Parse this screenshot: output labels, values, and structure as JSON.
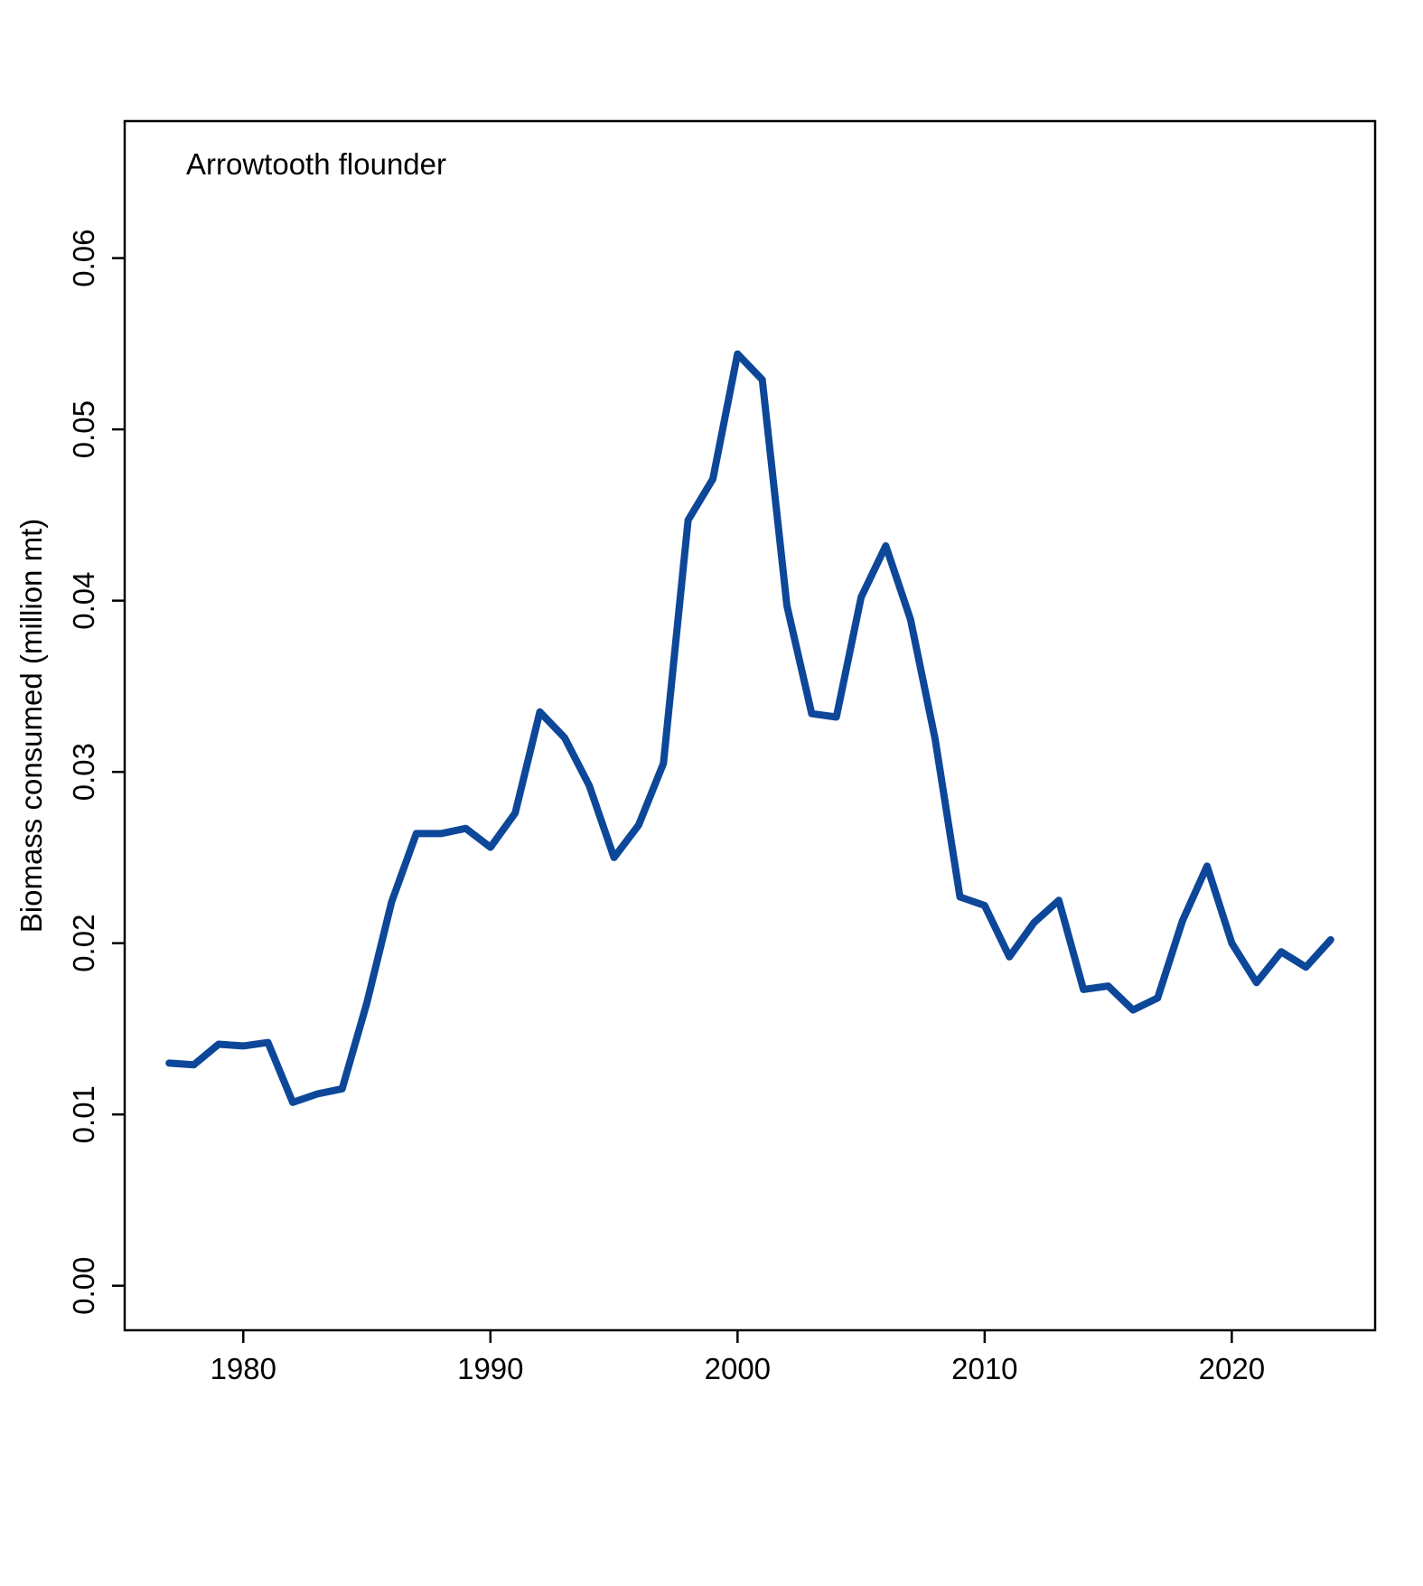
{
  "chart_data": {
    "type": "line",
    "title": "",
    "panel_label": "Arrowtooth flounder",
    "xlabel": "",
    "ylabel": "Biomass consumed (million mt)",
    "xlim": [
      1975.2,
      2025.8
    ],
    "ylim": [
      -0.0026,
      0.068
    ],
    "xticks": [
      1980,
      1990,
      2000,
      2010,
      2020
    ],
    "xtick_labels": [
      "1980",
      "1990",
      "2000",
      "2010",
      "2020"
    ],
    "yticks": [
      0.0,
      0.01,
      0.02,
      0.03,
      0.04,
      0.05,
      0.06
    ],
    "ytick_labels": [
      "0.00",
      "0.01",
      "0.02",
      "0.03",
      "0.04",
      "0.05",
      "0.06"
    ],
    "grid": false,
    "line_color": "#0d4799",
    "x": [
      1977,
      1978,
      1979,
      1980,
      1981,
      1982,
      1983,
      1984,
      1985,
      1986,
      1987,
      1988,
      1989,
      1990,
      1991,
      1992,
      1993,
      1994,
      1995,
      1996,
      1997,
      1998,
      1999,
      2000,
      2001,
      2002,
      2003,
      2004,
      2005,
      2006,
      2007,
      2008,
      2009,
      2010,
      2011,
      2012,
      2013,
      2014,
      2015,
      2016,
      2017,
      2018,
      2019,
      2020,
      2021,
      2022,
      2023,
      2024
    ],
    "y": [
      0.013,
      0.0129,
      0.0141,
      0.014,
      0.0142,
      0.0107,
      0.0112,
      0.0115,
      0.0165,
      0.0224,
      0.0264,
      0.0264,
      0.0267,
      0.0256,
      0.0276,
      0.0335,
      0.032,
      0.0292,
      0.025,
      0.0269,
      0.0305,
      0.0447,
      0.0471,
      0.0544,
      0.0529,
      0.0397,
      0.0334,
      0.0332,
      0.0402,
      0.0432,
      0.0389,
      0.0319,
      0.0227,
      0.0222,
      0.0192,
      0.0212,
      0.0225,
      0.0173,
      0.0175,
      0.0161,
      0.0168,
      0.0213,
      0.0245,
      0.02,
      0.0177,
      0.0195,
      0.0186,
      0.0202
    ]
  }
}
